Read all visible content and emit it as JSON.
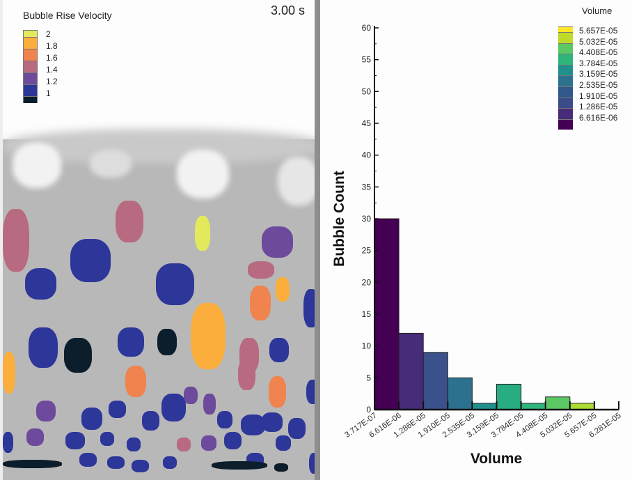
{
  "simulation": {
    "legend_title": "Bubble Rise Velocity",
    "time_label": "3.00 s",
    "legend": [
      {
        "label": "2",
        "color": "#e2ea5c"
      },
      {
        "label": "1.8",
        "color": "#fbae3c"
      },
      {
        "label": "1.6",
        "color": "#f0834e"
      },
      {
        "label": "1.4",
        "color": "#b86a80"
      },
      {
        "label": "1.2",
        "color": "#6d4a9c"
      },
      {
        "label": "1",
        "color": "#2d3699"
      },
      {
        "label": "",
        "color": "#0c1e2c"
      }
    ]
  },
  "chart_data": {
    "type": "bar",
    "title": "",
    "xlabel": "Volume",
    "ylabel": "Bubble Count",
    "ylim": [
      0,
      60
    ],
    "yticks": [
      0,
      5,
      10,
      15,
      20,
      25,
      30,
      35,
      40,
      45,
      50,
      55,
      60
    ],
    "bin_edges": [
      "3.717E-07",
      "6.616E-06",
      "1.286E-05",
      "1.910E-05",
      "2.535E-05",
      "3.159E-05",
      "3.784E-05",
      "4.408E-05",
      "5.032E-05",
      "5.657E-05",
      "6.281E-05"
    ],
    "values": [
      30,
      12,
      9,
      5,
      1,
      4,
      1,
      2,
      1,
      0
    ],
    "bar_colors": [
      "#440154",
      "#472c7a",
      "#3b518b",
      "#2c718e",
      "#21908d",
      "#27ad81",
      "#2fb47c",
      "#5cc863",
      "#aadc32",
      "#fde725"
    ],
    "legend": {
      "title": "Volume",
      "entries": [
        "5.657E-05",
        "5.032E-05",
        "4.408E-05",
        "3.784E-05",
        "3.159E-05",
        "2.535E-05",
        "1.910E-05",
        "1.286E-05",
        "6.616E-06"
      ],
      "colors": [
        "#fde725",
        "#c2d92a",
        "#5cc863",
        "#2fb47c",
        "#21908d",
        "#2c728e",
        "#31578b",
        "#3b4c8b",
        "#472c7a",
        "#440154"
      ]
    }
  }
}
